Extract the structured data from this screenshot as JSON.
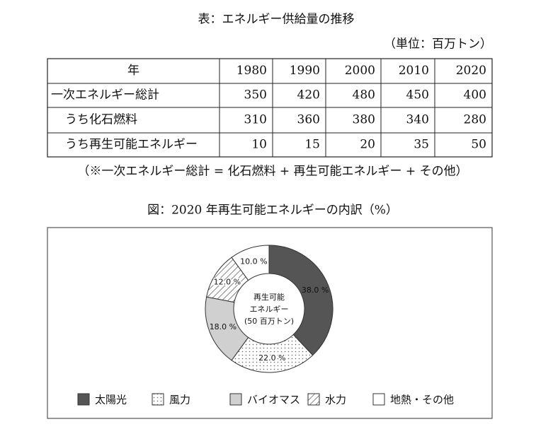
{
  "table": {
    "title": "表：エネルギー供給量の推移",
    "unit": "（単位：百万トン）",
    "header": [
      "年",
      "1980",
      "1990",
      "2000",
      "2010",
      "2020"
    ],
    "rows": [
      [
        "一次エネルギー総計",
        350,
        420,
        480,
        450,
        400
      ],
      [
        "うち化石燃料",
        310,
        360,
        380,
        340,
        280
      ],
      [
        "うち再生可能エネルギー",
        10,
        15,
        20,
        35,
        50
      ]
    ],
    "note": "（※一次エネルギー総計 = 化石燃料 + 再生可能エネルギー + その他）"
  },
  "chart_data": {
    "type": "donut",
    "title": "図：2020 年再生可能エネルギーの内訳（%）",
    "center_label": [
      "再生可能",
      "エネルギー",
      "(50 百万トン)"
    ],
    "categories": [
      "太陽光",
      "風力",
      "バイオマス",
      "水力",
      "地熱・その他"
    ],
    "values": [
      38,
      22,
      18,
      12,
      10
    ],
    "value_labels": [
      "38.0 %",
      "22.0 %",
      "18.0 %",
      "12.0 %",
      "10.0 %"
    ],
    "fills": [
      "#555555",
      "dots",
      "#d0d0d0",
      "hatch",
      "#ffffff"
    ]
  }
}
